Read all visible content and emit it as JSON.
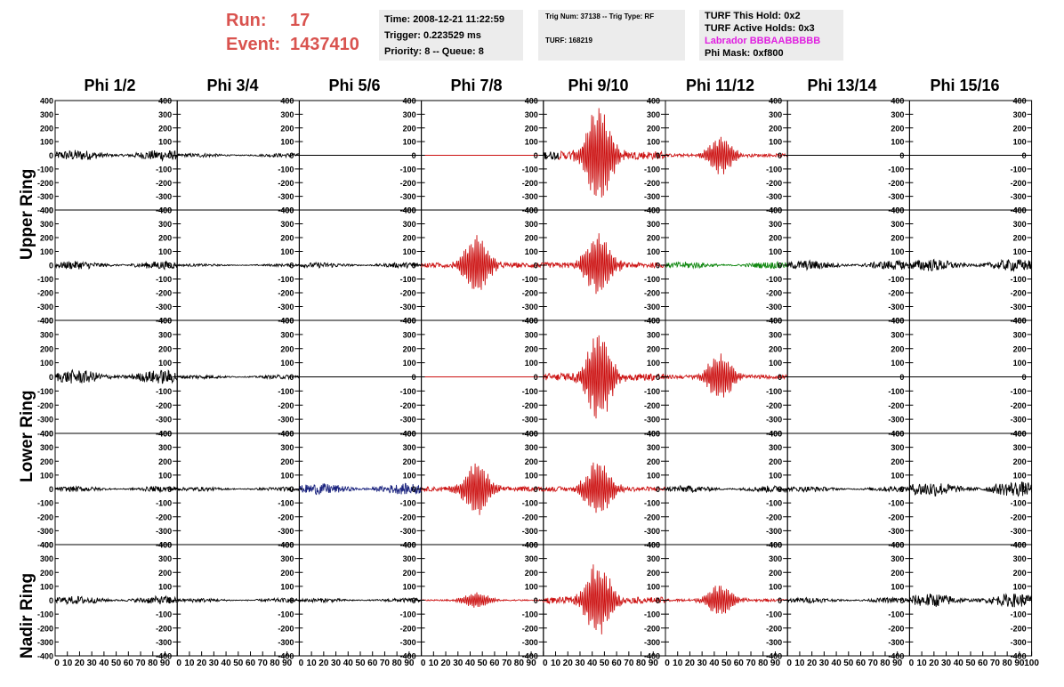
{
  "header": {
    "run_label": "Run:",
    "run_value": "17",
    "event_label": "Event:",
    "event_value": "1437410",
    "time": "Time: 2008-12-21 11:22:59",
    "trigger": "Trigger: 0.223529 ms",
    "priority": "Priority: 8 -- Queue: 8",
    "trig_num": "Trig Num: 37138 -- Trig Type: RF",
    "turf": "TURF: 168219",
    "turf_hold": "TURF This Hold: 0x2",
    "turf_active": "TURF Active Holds: 0x3",
    "labrador": "Labrador BBBAABBBBB",
    "phi_mask": "Phi Mask: 0xf800"
  },
  "columns": [
    "Phi 1/2",
    "Phi 3/4",
    "Phi 5/6",
    "Phi 7/8",
    "Phi 9/10",
    "Phi 11/12",
    "Phi 13/14",
    "Phi 15/16"
  ],
  "ring_labels": [
    "Upper Ring",
    "Lower Ring",
    "Nadir Ring"
  ],
  "colors": {
    "black": "#000000",
    "red": "#cc1111",
    "green": "#118811",
    "blue": "#1a237e",
    "run_text": "#d9534f",
    "magenta": "#e020e0"
  },
  "chart_data": {
    "type": "line",
    "ylim": [
      -400,
      400
    ],
    "xlim": [
      0,
      100
    ],
    "y_ticks": [
      400,
      300,
      200,
      100,
      0,
      -100,
      -200,
      -300,
      -400
    ],
    "x_tick_labels": [
      "0",
      "10",
      "20",
      "30",
      "40",
      "50",
      "60",
      "70",
      "80",
      "90",
      "100"
    ],
    "rows": [
      [
        "noise:40:black",
        "noise:15:black",
        "flat:black",
        "flat:red",
        "pulse:380:black-red",
        "pulse:140:red",
        "flat:black",
        "flat:black"
      ],
      [
        "noise:30:black",
        "noise:10:black",
        "noise:20:black",
        "pulse:220:red",
        "pulse:240:red",
        "noise:25:green",
        "noise:35:black",
        "noise:45:black"
      ],
      [
        "noise:50:black",
        "noise:15:black",
        "flat:black",
        "flat:red",
        "pulse:330:red",
        "pulse:170:red",
        "flat:black",
        "flat:black"
      ],
      [
        "noise:20:black",
        "noise:15:black",
        "noise:40:blue",
        "pulse:200:red",
        "pulse:210:red",
        "noise:25:black",
        "noise:20:black",
        "noise:55:black"
      ],
      [
        "noise:30:black",
        "noise:15:black",
        "noise:15:black",
        "pulse:60:red",
        "pulse:280:red",
        "pulse:120:red",
        "noise:20:black",
        "noise:50:black"
      ]
    ]
  }
}
